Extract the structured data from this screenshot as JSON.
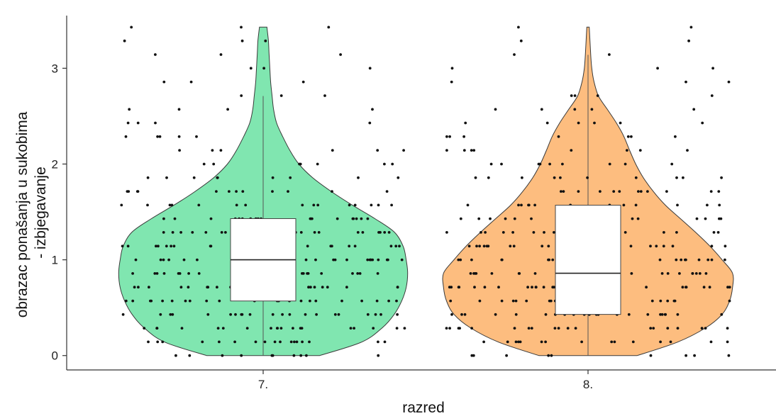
{
  "chart_data": {
    "type": "violin",
    "xlabel": "razred",
    "ylabel_lines": [
      "obrazac ponašanja u sukobima",
      "- izbjegavanje"
    ],
    "ylim": [
      -0.15,
      3.55
    ],
    "yticks": [
      0,
      1,
      2,
      3
    ],
    "categories": [
      "7.",
      "8."
    ],
    "grid": false,
    "legend": "none",
    "groups": [
      {
        "label": "7.",
        "color": "#80e6b0",
        "box": {
          "whisker_low": 0,
          "q1": 0.57,
          "median": 1.0,
          "q3": 1.43,
          "whisker_high": 2.71
        },
        "max": 3.43,
        "density": [
          [
            0.0,
            0.38
          ],
          [
            0.14,
            0.66
          ],
          [
            0.29,
            0.8
          ],
          [
            0.43,
            0.88
          ],
          [
            0.57,
            0.93
          ],
          [
            0.71,
            0.96
          ],
          [
            0.86,
            0.97
          ],
          [
            1.0,
            0.96
          ],
          [
            1.14,
            0.94
          ],
          [
            1.29,
            0.88
          ],
          [
            1.43,
            0.75
          ],
          [
            1.57,
            0.6
          ],
          [
            1.71,
            0.46
          ],
          [
            1.86,
            0.33
          ],
          [
            2.0,
            0.24
          ],
          [
            2.14,
            0.18
          ],
          [
            2.29,
            0.13
          ],
          [
            2.43,
            0.09
          ],
          [
            2.57,
            0.07
          ],
          [
            2.71,
            0.06
          ],
          [
            2.86,
            0.05
          ],
          [
            3.0,
            0.045
          ],
          [
            3.14,
            0.04
          ],
          [
            3.29,
            0.035
          ],
          [
            3.43,
            0.025
          ]
        ]
      },
      {
        "label": "8.",
        "color": "#fdbd7f",
        "box": {
          "whisker_low": 0,
          "q1": 0.43,
          "median": 0.86,
          "q3": 1.57,
          "whisker_high": 3.14
        },
        "max": 3.43,
        "density": [
          [
            0.0,
            0.33
          ],
          [
            0.14,
            0.6
          ],
          [
            0.29,
            0.79
          ],
          [
            0.43,
            0.9
          ],
          [
            0.57,
            0.95
          ],
          [
            0.71,
            0.97
          ],
          [
            0.86,
            0.97
          ],
          [
            1.0,
            0.9
          ],
          [
            1.14,
            0.82
          ],
          [
            1.29,
            0.72
          ],
          [
            1.43,
            0.62
          ],
          [
            1.57,
            0.52
          ],
          [
            1.71,
            0.44
          ],
          [
            1.86,
            0.37
          ],
          [
            2.0,
            0.32
          ],
          [
            2.14,
            0.28
          ],
          [
            2.29,
            0.24
          ],
          [
            2.43,
            0.19
          ],
          [
            2.57,
            0.13
          ],
          [
            2.71,
            0.07
          ],
          [
            2.86,
            0.04
          ],
          [
            3.0,
            0.025
          ],
          [
            3.14,
            0.018
          ],
          [
            3.29,
            0.013
          ],
          [
            3.43,
            0.008
          ]
        ]
      }
    ]
  }
}
